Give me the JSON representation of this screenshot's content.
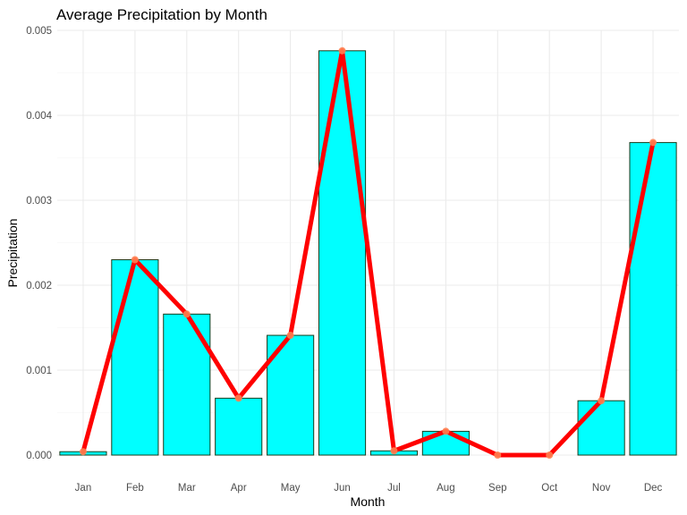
{
  "chart_data": {
    "type": "bar",
    "title": "Average Precipitation by Month",
    "xlabel": "Month",
    "ylabel": "Precipitation",
    "categories": [
      "Jan",
      "Feb",
      "Mar",
      "Apr",
      "May",
      "Jun",
      "Jul",
      "Aug",
      "Sep",
      "Oct",
      "Nov",
      "Dec"
    ],
    "values": [
      4e-05,
      0.0023,
      0.00166,
      0.00067,
      0.00141,
      0.00476,
      5e-05,
      0.00028,
      0.0,
      0.0,
      0.00064,
      0.00368
    ],
    "ylim": [
      0,
      0.005
    ],
    "yticks": [
      "0.000",
      "0.001",
      "0.002",
      "0.003",
      "0.004",
      "0.005"
    ],
    "overlay": "line",
    "grid": true,
    "legend": "none",
    "colors": {
      "bar_fill": "#00FFFF",
      "bar_outline": "#1a3a1a",
      "line": "#FF0000",
      "point": "#FF7F50"
    }
  }
}
